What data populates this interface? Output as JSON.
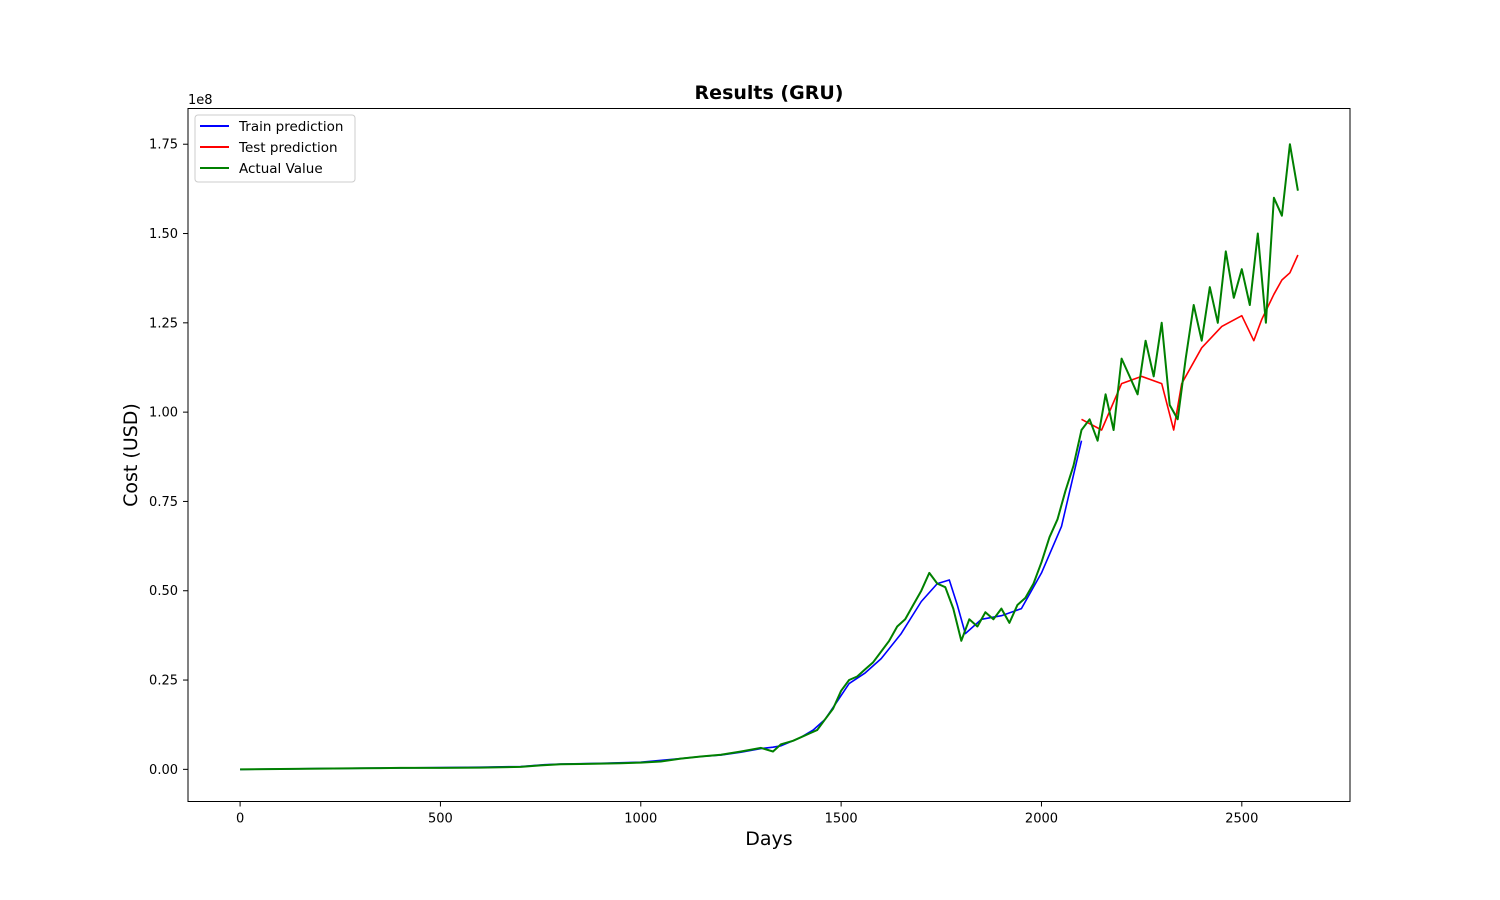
{
  "chart_data": {
    "type": "line",
    "title": "Results (GRU)",
    "xlabel": "Days",
    "ylabel": "Cost (USD)",
    "y_offset_label": "1e8",
    "xlim": [
      -130,
      2770
    ],
    "ylim": [
      -0.09,
      1.85
    ],
    "xticks": [
      0,
      500,
      1000,
      1500,
      2000,
      2500
    ],
    "xtick_labels": [
      "0",
      "500",
      "1000",
      "1500",
      "2000",
      "2500"
    ],
    "yticks": [
      0.0,
      0.25,
      0.5,
      0.75,
      1.0,
      1.25,
      1.5,
      1.75
    ],
    "ytick_labels": [
      "0.00",
      "0.25",
      "0.50",
      "0.75",
      "1.00",
      "1.25",
      "1.50",
      "1.75"
    ],
    "grid": false,
    "legend_position": "top-left",
    "series": [
      {
        "name": "Train prediction",
        "color": "#0000ff",
        "x": [
          0,
          200,
          400,
          600,
          700,
          760,
          800,
          900,
          1000,
          1100,
          1150,
          1200,
          1250,
          1300,
          1330,
          1350,
          1380,
          1400,
          1430,
          1460,
          1490,
          1520,
          1560,
          1600,
          1650,
          1700,
          1740,
          1770,
          1790,
          1810,
          1850,
          1900,
          1950,
          2000,
          2050,
          2100
        ],
        "y": [
          0.0,
          0.002,
          0.004,
          0.006,
          0.008,
          0.013,
          0.015,
          0.017,
          0.02,
          0.03,
          0.036,
          0.04,
          0.048,
          0.058,
          0.062,
          0.066,
          0.08,
          0.09,
          0.11,
          0.14,
          0.19,
          0.24,
          0.27,
          0.31,
          0.38,
          0.47,
          0.52,
          0.53,
          0.46,
          0.38,
          0.42,
          0.43,
          0.45,
          0.55,
          0.68,
          0.92
        ]
      },
      {
        "name": "Test prediction",
        "color": "#ff0000",
        "x": [
          2100,
          2150,
          2200,
          2250,
          2300,
          2330,
          2350,
          2400,
          2450,
          2500,
          2530,
          2550,
          2580,
          2600,
          2620,
          2640
        ],
        "y": [
          0.98,
          0.95,
          1.08,
          1.1,
          1.08,
          0.95,
          1.08,
          1.18,
          1.24,
          1.27,
          1.2,
          1.26,
          1.33,
          1.37,
          1.39,
          1.44
        ]
      },
      {
        "name": "Actual Value",
        "color": "#008000",
        "x": [
          0,
          100,
          200,
          300,
          400,
          500,
          600,
          700,
          750,
          800,
          850,
          900,
          950,
          1000,
          1050,
          1100,
          1150,
          1200,
          1250,
          1300,
          1330,
          1350,
          1380,
          1400,
          1420,
          1440,
          1460,
          1480,
          1500,
          1520,
          1540,
          1560,
          1580,
          1600,
          1620,
          1640,
          1660,
          1680,
          1700,
          1720,
          1740,
          1760,
          1780,
          1800,
          1820,
          1840,
          1860,
          1880,
          1900,
          1920,
          1940,
          1960,
          1980,
          2000,
          2020,
          2040,
          2060,
          2080,
          2100,
          2120,
          2140,
          2160,
          2180,
          2200,
          2220,
          2240,
          2260,
          2280,
          2300,
          2320,
          2340,
          2360,
          2380,
          2400,
          2420,
          2440,
          2460,
          2480,
          2500,
          2520,
          2540,
          2560,
          2580,
          2600,
          2620,
          2640
        ],
        "y": [
          0.0,
          0.001,
          0.002,
          0.003,
          0.004,
          0.004,
          0.005,
          0.007,
          0.011,
          0.014,
          0.015,
          0.016,
          0.017,
          0.019,
          0.022,
          0.03,
          0.036,
          0.041,
          0.05,
          0.06,
          0.05,
          0.07,
          0.08,
          0.09,
          0.1,
          0.11,
          0.14,
          0.17,
          0.22,
          0.25,
          0.26,
          0.28,
          0.3,
          0.33,
          0.36,
          0.4,
          0.42,
          0.46,
          0.5,
          0.55,
          0.52,
          0.51,
          0.45,
          0.36,
          0.42,
          0.4,
          0.44,
          0.42,
          0.45,
          0.41,
          0.46,
          0.48,
          0.52,
          0.58,
          0.65,
          0.7,
          0.78,
          0.85,
          0.95,
          0.98,
          0.92,
          1.05,
          0.95,
          1.15,
          1.1,
          1.05,
          1.2,
          1.1,
          1.25,
          1.02,
          0.98,
          1.15,
          1.3,
          1.2,
          1.35,
          1.25,
          1.45,
          1.32,
          1.4,
          1.3,
          1.5,
          1.25,
          1.6,
          1.55,
          1.75,
          1.62
        ]
      }
    ]
  }
}
